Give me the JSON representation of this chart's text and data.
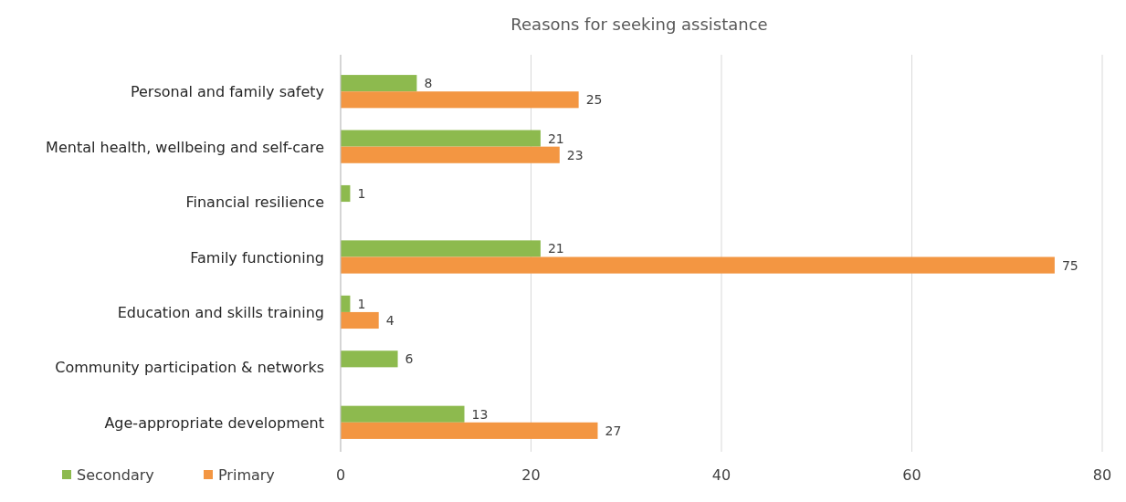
{
  "chart_data": {
    "type": "bar",
    "orientation": "horizontal",
    "title": "Reasons for seeking assistance",
    "categories": [
      "Personal and family safety",
      "Mental health, wellbeing and self-care",
      "Financial resilience",
      "Family functioning",
      "Education and skills training",
      "Community participation & networks",
      "Age-appropriate development"
    ],
    "series": [
      {
        "name": "Secondary",
        "color": "#8dba4e",
        "values": [
          8,
          21,
          1,
          21,
          1,
          6,
          13
        ]
      },
      {
        "name": "Primary",
        "color": "#f39642",
        "values": [
          25,
          23,
          null,
          75,
          4,
          null,
          27
        ]
      }
    ],
    "xlim": [
      0,
      80
    ],
    "xticks": [
      0,
      20,
      40,
      60,
      80
    ],
    "grid": "x",
    "legend": "bottom left",
    "data_labels": true
  }
}
